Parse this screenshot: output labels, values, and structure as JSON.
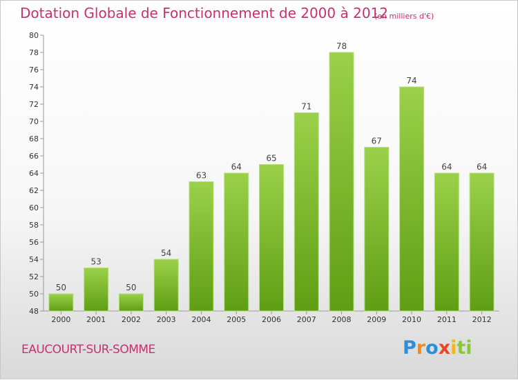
{
  "chart_data": {
    "type": "bar",
    "title": "Dotation Globale de Fonctionnement de 2000 à 2012",
    "unit_note": "(en milliers d'€)",
    "categories": [
      "2000",
      "2001",
      "2002",
      "2003",
      "2004",
      "2005",
      "2006",
      "2007",
      "2008",
      "2009",
      "2010",
      "2011",
      "2012"
    ],
    "values": [
      50,
      53,
      50,
      54,
      63,
      64,
      65,
      71,
      78,
      67,
      74,
      64,
      64
    ],
    "ylim": [
      48,
      80
    ],
    "ytick_step": 2,
    "grid": false,
    "bar_color": "#7fbf2a",
    "legend": "none"
  },
  "footer": {
    "city": "EAUCOURT-SUR-SOMME",
    "logo_parts": [
      "P",
      "r",
      "o",
      "x",
      "i",
      "ti"
    ]
  }
}
